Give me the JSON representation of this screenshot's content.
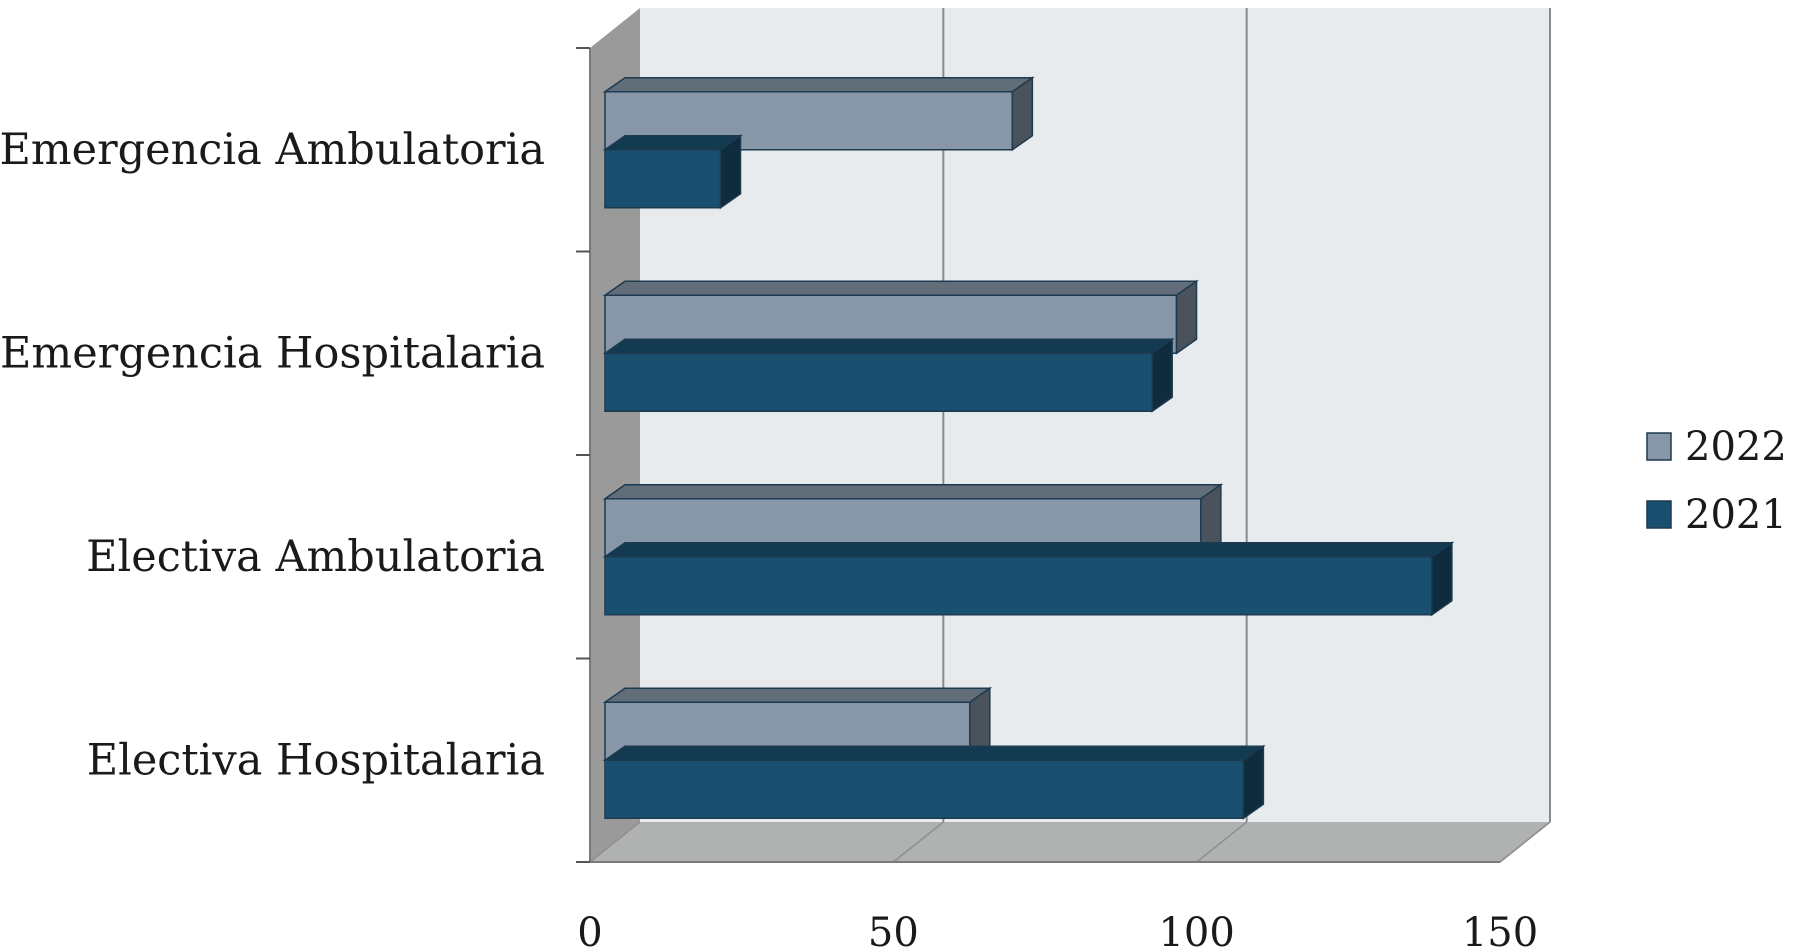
{
  "chart_data": {
    "type": "bar",
    "orientation": "horizontal",
    "style": "3d",
    "categories": [
      "Electiva Hospitalaria",
      "Electiva Ambulatoria",
      "Emergencia Hospitalaria",
      "Emergencia Ambulatoria"
    ],
    "series": [
      {
        "name": "2022",
        "values": [
          60,
          98,
          94,
          67
        ],
        "color": "#8797a8"
      },
      {
        "name": "2021",
        "values": [
          105,
          136,
          90,
          19
        ],
        "color": "#19506f"
      }
    ],
    "xlim": [
      0,
      150
    ],
    "x_ticks": [
      "0",
      "50",
      "100",
      "150"
    ],
    "grid": true,
    "legend_position": "right",
    "title": "",
    "xlabel": "",
    "ylabel": ""
  }
}
